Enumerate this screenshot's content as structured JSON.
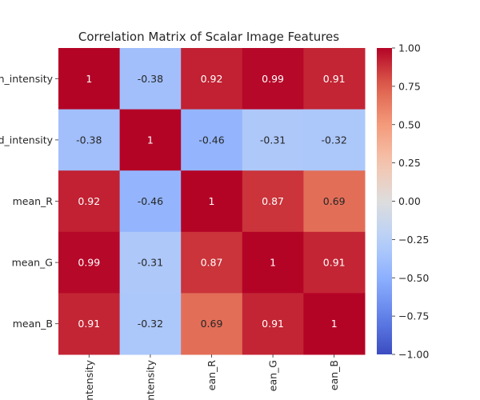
{
  "chart_data": {
    "type": "heatmap",
    "title": "Correlation Matrix of Scalar Image Features",
    "row_labels": [
      "n_intensity",
      "d_intensity",
      "mean_R",
      "mean_G",
      "mean_B"
    ],
    "col_labels": [
      "ntensity",
      "ntensity",
      "ean_R",
      "ean_G",
      "ean_B"
    ],
    "matrix": [
      [
        1,
        -0.38,
        0.92,
        0.99,
        0.91
      ],
      [
        -0.38,
        1,
        -0.46,
        -0.31,
        -0.32
      ],
      [
        0.92,
        -0.46,
        1,
        0.87,
        0.69
      ],
      [
        0.99,
        -0.31,
        0.87,
        1,
        0.91
      ],
      [
        0.91,
        -0.32,
        0.69,
        0.91,
        1
      ]
    ],
    "value_labels": [
      [
        "1",
        "-0.38",
        "0.92",
        "0.99",
        "0.91"
      ],
      [
        "-0.38",
        "1",
        "-0.46",
        "-0.31",
        "-0.32"
      ],
      [
        "0.92",
        "-0.46",
        "1",
        "0.87",
        "0.69"
      ],
      [
        "0.99",
        "-0.31",
        "0.87",
        "1",
        "0.91"
      ],
      [
        "0.91",
        "-0.32",
        "0.69",
        "0.91",
        "1"
      ]
    ],
    "colormap": "coolwarm",
    "vmin": -1,
    "vmax": 1,
    "colorbar_ticks": [
      1.0,
      0.75,
      0.5,
      0.25,
      0.0,
      -0.25,
      -0.5,
      -0.75,
      -1.0
    ],
    "colorbar_tick_labels": [
      "1.00",
      "0.75",
      "0.50",
      "0.25",
      "0.00",
      "−0.25",
      "−0.50",
      "−0.75",
      "−1.00"
    ]
  }
}
